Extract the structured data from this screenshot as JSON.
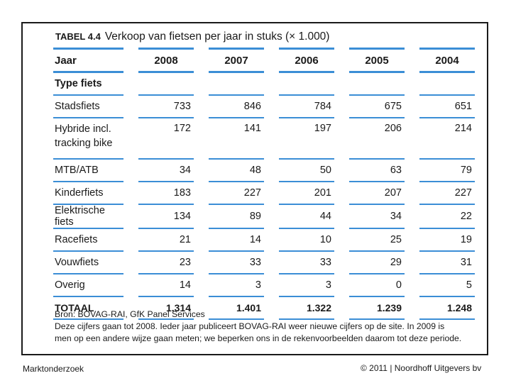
{
  "table": {
    "label": "TABEL 4.4",
    "title": "Verkoop van fietsen per jaar in stuks (× 1.000)",
    "header_label": "Jaar",
    "years": [
      "2008",
      "2007",
      "2006",
      "2005",
      "2004"
    ],
    "subheader": "Type fiets",
    "rows": [
      {
        "name": "Stadsfiets",
        "values": [
          "733",
          "846",
          "784",
          "675",
          "651"
        ]
      },
      {
        "name": "Hybride incl. tracking bike",
        "values": [
          "172",
          "141",
          "197",
          "206",
          "214"
        ]
      },
      {
        "name": "MTB/ATB",
        "values": [
          "34",
          "48",
          "50",
          "63",
          "79"
        ]
      },
      {
        "name": "Kinderfiets",
        "values": [
          "183",
          "227",
          "201",
          "207",
          "227"
        ]
      },
      {
        "name": "Elektrische fiets",
        "values": [
          "134",
          "89",
          "44",
          "34",
          "22"
        ]
      },
      {
        "name": "Racefiets",
        "values": [
          "21",
          "14",
          "10",
          "25",
          "19"
        ]
      },
      {
        "name": "Vouwfiets",
        "values": [
          "23",
          "33",
          "33",
          "29",
          "31"
        ]
      },
      {
        "name": "Overig",
        "values": [
          "14",
          "3",
          "3",
          "0",
          "5"
        ]
      }
    ],
    "total": {
      "name": "TOTAAL",
      "values": [
        "1.314",
        "1.401",
        "1.322",
        "1.239",
        "1.248"
      ]
    },
    "source": "Bron: BOVAG-RAI, GfK Panel Services",
    "note": "Deze cijfers gaan tot 2008. Ieder jaar publiceert BOVAG-RAI weer nieuwe cijfers op de site. In 2009 is men op een andere wijze gaan meten; we beperken ons in de rekenvoorbeelden daarom tot deze periode."
  },
  "footer": {
    "left": "Marktonderzoek",
    "right": "© 2011 | Noordhoff Uitgevers bv"
  },
  "colors": {
    "rule": "#3b8ed6"
  }
}
